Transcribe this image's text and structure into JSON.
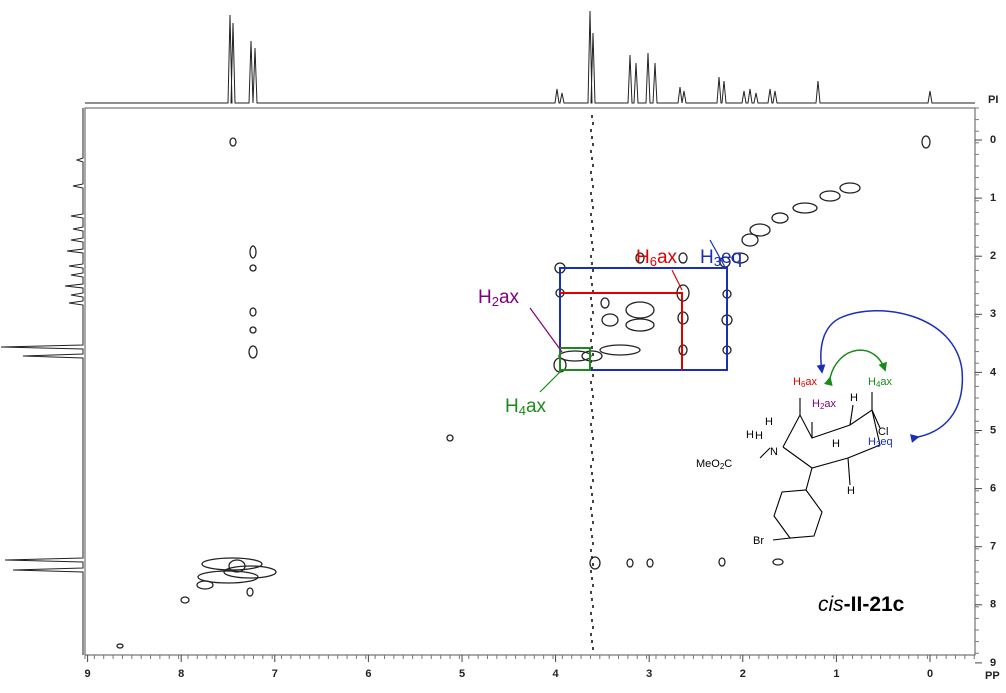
{
  "spectrum": {
    "x_axis": {
      "ticks": [
        9,
        8,
        7,
        6,
        5,
        4,
        3,
        2,
        1,
        0
      ],
      "unit": "PP"
    },
    "y_axis": {
      "ticks": [
        0,
        1,
        2,
        3,
        4,
        5,
        6,
        7,
        8,
        9
      ],
      "unit": "PI"
    }
  },
  "annotations": {
    "h6ax": {
      "atom": "H",
      "index": "6",
      "suffix": "ax"
    },
    "h3eq": {
      "atom": "H",
      "index": "3",
      "suffix": "eq"
    },
    "h2ax": {
      "atom": "H",
      "index": "2",
      "suffix": "ax"
    },
    "h4ax": {
      "atom": "H",
      "index": "4",
      "suffix": "ax"
    }
  },
  "molecule": {
    "h6ax": {
      "atom": "H",
      "index": "6",
      "suffix": "ax"
    },
    "h4ax": {
      "atom": "H",
      "index": "4",
      "suffix": "ax"
    },
    "h2ax": {
      "atom": "H",
      "index": "2",
      "suffix": "ax"
    },
    "h3eq": {
      "atom": "H",
      "index": "3",
      "suffix": "eq"
    },
    "hydrogens": [
      "H",
      "H",
      "H",
      "H",
      "H",
      "H"
    ],
    "chlorine": "Cl",
    "nitrogen": "N",
    "ester": {
      "pre": "MeO",
      "sub": "2",
      "post": "C"
    },
    "bromine": "Br"
  },
  "compound": {
    "prefix": "cis",
    "name": "-II-21c"
  }
}
